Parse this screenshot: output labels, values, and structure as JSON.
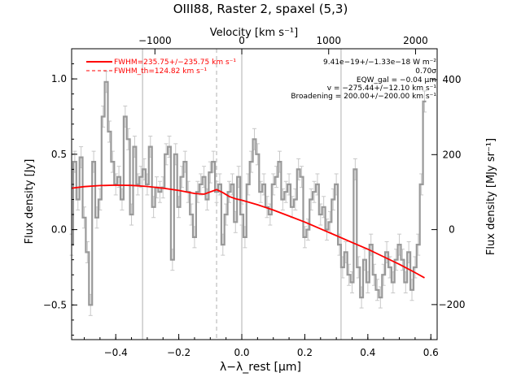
{
  "chart_data": {
    "type": "line",
    "title": "OIII88, Raster 2, spaxel (5,3)",
    "xlabel": "λ−λ_rest [μm]",
    "ylabel": "Flux density [Jy]",
    "ylabel_right": "Flux density [MJy sr⁻¹]",
    "xlabel_top": "Velocity [km s⁻¹]",
    "xlim": [
      -0.54,
      0.62
    ],
    "ylim": [
      -0.73,
      1.2
    ],
    "x_ticks": [
      -0.4,
      -0.2,
      0.0,
      0.2,
      0.4,
      0.6
    ],
    "x_tick_labels": [
      "−0.4",
      "−0.2",
      "0.0",
      "0.2",
      "0.4",
      "0.6"
    ],
    "y_ticks": [
      -0.5,
      0.0,
      0.5,
      1.0
    ],
    "y_tick_labels": [
      "−0.5",
      "0.0",
      "0.5",
      "1.0"
    ],
    "top_axis": {
      "ticks": [
        -1000,
        0,
        1000,
        2000
      ],
      "tick_labels": [
        "−1000",
        "0",
        "1000",
        "2000"
      ],
      "kms_per_um": 3627
    },
    "right_axis": {
      "ticks": [
        -200,
        0,
        200,
        400
      ],
      "tick_labels": [
        "−200",
        "0",
        "200",
        "400"
      ],
      "per_jy": 402
    },
    "vlines": [
      {
        "x": -0.315,
        "style": "solid"
      },
      {
        "x": -0.08,
        "style": "dashed"
      },
      {
        "x": 0.0,
        "style": "solid"
      },
      {
        "x": 0.315,
        "style": "solid"
      }
    ],
    "grid": false,
    "legend": {
      "placement": "top-left",
      "entries": [
        {
          "label": "FWHM=235.75+/−235.75 km s⁻¹",
          "style": "solid",
          "color": "#ff0000"
        },
        {
          "label": "FWHM_th=124.82 km s⁻¹",
          "style": "dashed",
          "color": "#ff0000"
        }
      ]
    },
    "annotations": [
      "9.41e−19+/−1.33e−18 W m⁻²",
      "0.70σ",
      "EQW_gal = −0.04 μm",
      "v = −275.44+/−12.10 km s⁻¹",
      "Broadening = 200.00+/−200.00 km s⁻¹"
    ],
    "series": [
      {
        "name": "Data",
        "style": "steps",
        "color": "#999999",
        "x": [
          -0.54,
          -0.53,
          -0.52,
          -0.51,
          -0.5,
          -0.49,
          -0.48,
          -0.47,
          -0.46,
          -0.45,
          -0.44,
          -0.43,
          -0.42,
          -0.41,
          -0.4,
          -0.39,
          -0.38,
          -0.37,
          -0.36,
          -0.35,
          -0.34,
          -0.33,
          -0.32,
          -0.31,
          -0.3,
          -0.29,
          -0.28,
          -0.27,
          -0.26,
          -0.25,
          -0.24,
          -0.23,
          -0.22,
          -0.21,
          -0.2,
          -0.19,
          -0.18,
          -0.17,
          -0.16,
          -0.15,
          -0.14,
          -0.13,
          -0.12,
          -0.11,
          -0.1,
          -0.09,
          -0.08,
          -0.07,
          -0.06,
          -0.05,
          -0.04,
          -0.03,
          -0.02,
          -0.01,
          0.0,
          0.01,
          0.02,
          0.03,
          0.04,
          0.05,
          0.06,
          0.07,
          0.08,
          0.09,
          0.1,
          0.11,
          0.12,
          0.13,
          0.14,
          0.15,
          0.16,
          0.17,
          0.18,
          0.19,
          0.2,
          0.21,
          0.22,
          0.23,
          0.24,
          0.25,
          0.26,
          0.27,
          0.28,
          0.29,
          0.3,
          0.31,
          0.32,
          0.33,
          0.34,
          0.35,
          0.36,
          0.37,
          0.38,
          0.39,
          0.4,
          0.41,
          0.42,
          0.43,
          0.44,
          0.45,
          0.46,
          0.47,
          0.48,
          0.49,
          0.5,
          0.51,
          0.52,
          0.53,
          0.54,
          0.55,
          0.56,
          0.57,
          0.58
        ],
        "y": [
          -0.1,
          0.45,
          0.2,
          0.48,
          0.08,
          -0.15,
          -0.5,
          0.45,
          0.08,
          0.2,
          0.75,
          0.98,
          0.65,
          0.45,
          0.3,
          0.35,
          0.2,
          0.75,
          0.6,
          0.1,
          0.55,
          0.3,
          0.35,
          0.4,
          0.3,
          0.55,
          0.15,
          0.28,
          0.25,
          0.28,
          0.5,
          0.55,
          -0.2,
          0.5,
          0.15,
          0.35,
          0.45,
          0.25,
          0.1,
          -0.05,
          0.25,
          0.3,
          0.35,
          0.2,
          0.38,
          0.45,
          0.25,
          0.3,
          -0.1,
          0.1,
          0.25,
          0.3,
          0.05,
          0.35,
          0.1,
          -0.05,
          0.3,
          0.45,
          0.6,
          0.5,
          0.25,
          0.3,
          0.15,
          0.1,
          0.3,
          0.35,
          0.45,
          0.2,
          0.25,
          0.3,
          0.15,
          0.2,
          0.4,
          0.35,
          -0.05,
          0.0,
          0.2,
          0.25,
          0.3,
          0.1,
          0.15,
          0.0,
          0.05,
          0.2,
          0.3,
          -0.1,
          -0.25,
          -0.15,
          -0.3,
          -0.35,
          0.4,
          -0.25,
          -0.45,
          -0.2,
          -0.35,
          -0.1,
          -0.3,
          -0.4,
          -0.45,
          -0.3,
          -0.15,
          -0.25,
          -0.35,
          -0.2,
          -0.1,
          -0.2,
          -0.35,
          -0.15,
          -0.4,
          -0.25,
          -0.1,
          0.3,
          0.85
        ]
      },
      {
        "name": "Fit",
        "style": "line",
        "color": "#ff0000",
        "x": [
          -0.54,
          -0.5,
          -0.45,
          -0.4,
          -0.35,
          -0.3,
          -0.25,
          -0.2,
          -0.15,
          -0.12,
          -0.1,
          -0.08,
          -0.06,
          -0.04,
          -0.02,
          0.0,
          0.05,
          0.1,
          0.15,
          0.2,
          0.25,
          0.3,
          0.35,
          0.4,
          0.45,
          0.5,
          0.55,
          0.58
        ],
        "y": [
          0.275,
          0.285,
          0.292,
          0.295,
          0.293,
          0.286,
          0.275,
          0.26,
          0.24,
          0.235,
          0.25,
          0.265,
          0.245,
          0.22,
          0.205,
          0.195,
          0.165,
          0.13,
          0.09,
          0.05,
          0.005,
          -0.04,
          -0.085,
          -0.13,
          -0.18,
          -0.23,
          -0.285,
          -0.32
        ]
      }
    ]
  }
}
